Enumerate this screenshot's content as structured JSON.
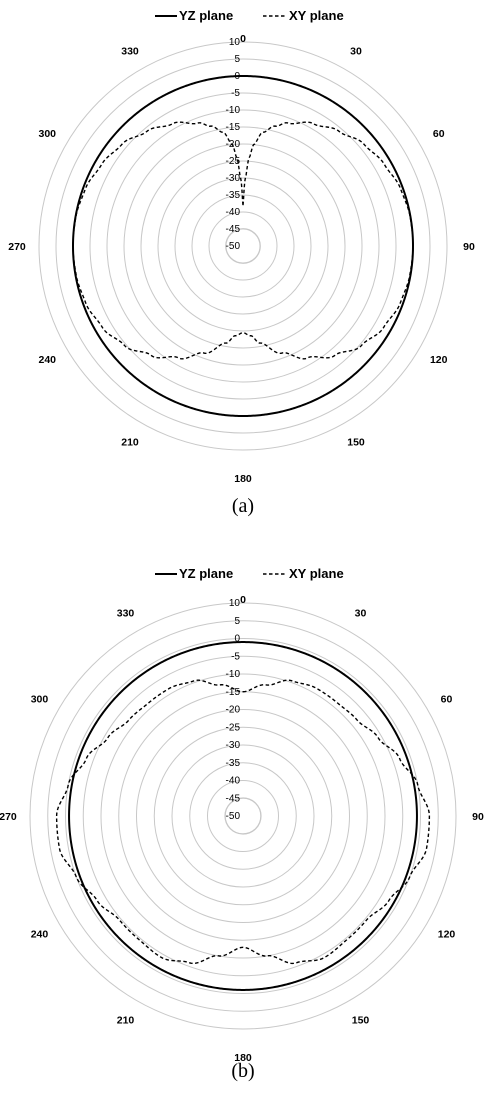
{
  "chart_data": [
    {
      "type": "polar-line",
      "panel": "a",
      "caption": "(a)",
      "r_ticks": [
        "10",
        "5",
        "0",
        "-5",
        "-10",
        "-15",
        "-20",
        "-25",
        "-30",
        "-35",
        "-40",
        "-45",
        "-50"
      ],
      "r_range": [
        -50,
        10
      ],
      "angle_ticks": [
        "0",
        "30",
        "60",
        "90",
        "120",
        "150",
        "180",
        "210",
        "240",
        "270",
        "300",
        "330"
      ],
      "legend_position": "top",
      "series": [
        {
          "name": "YZ plane",
          "line": "solid",
          "angles": [
            0,
            30,
            60,
            90,
            120,
            150,
            180,
            210,
            240,
            270,
            300,
            330,
            360
          ],
          "values": [
            0,
            0,
            0,
            0,
            0,
            0,
            0,
            0,
            0,
            0,
            0,
            0,
            0
          ]
        },
        {
          "name": "XY plane",
          "line": "dashed",
          "angles": [
            0,
            2,
            4,
            6,
            10,
            15,
            20,
            30,
            40,
            50,
            60,
            70,
            80,
            90,
            100,
            110,
            120,
            130,
            140,
            150,
            160,
            170,
            175,
            180,
            185,
            190,
            200,
            210,
            220,
            230,
            240,
            250,
            260,
            270,
            280,
            290,
            300,
            310,
            320,
            330,
            340,
            345,
            350,
            354,
            356,
            358,
            360
          ],
          "values": [
            -38,
            -30,
            -24,
            -20,
            -16,
            -13.5,
            -11.5,
            -8.5,
            -6,
            -3.5,
            -2,
            -0.7,
            -0.1,
            0,
            -0.2,
            -0.8,
            -2.2,
            -4.5,
            -8,
            -12,
            -16.5,
            -21,
            -23.5,
            -24.5,
            -23.5,
            -21,
            -16.5,
            -12,
            -8,
            -4.5,
            -2.2,
            -0.8,
            -0.2,
            0,
            -0.1,
            -0.7,
            -2,
            -3.5,
            -6,
            -8.5,
            -11.5,
            -13.5,
            -16,
            -20,
            -24,
            -30,
            -38
          ]
        }
      ]
    },
    {
      "type": "polar-line",
      "panel": "b",
      "caption": "(b)",
      "r_ticks": [
        "10",
        "5",
        "0",
        "-5",
        "-10",
        "-15",
        "-20",
        "-25",
        "-30",
        "-35",
        "-40",
        "-45",
        "-50"
      ],
      "r_range": [
        -50,
        10
      ],
      "angle_ticks": [
        "0",
        "30",
        "60",
        "90",
        "120",
        "150",
        "180",
        "210",
        "240",
        "270",
        "300",
        "330"
      ],
      "legend_position": "top",
      "series": [
        {
          "name": "YZ plane",
          "line": "solid",
          "angles": [
            0,
            30,
            60,
            90,
            120,
            150,
            180,
            210,
            240,
            270,
            300,
            330,
            360
          ],
          "values": [
            -1,
            -1,
            -1,
            -1,
            -1,
            -1,
            -1,
            -1,
            -1,
            -1,
            -1,
            -1,
            -1
          ]
        },
        {
          "name": "XY plane",
          "line": "dashed",
          "angles": [
            0,
            10,
            20,
            30,
            40,
            50,
            60,
            70,
            80,
            90,
            100,
            110,
            120,
            130,
            140,
            150,
            160,
            170,
            180,
            190,
            200,
            210,
            220,
            230,
            240,
            250,
            260,
            270,
            280,
            290,
            300,
            310,
            320,
            330,
            340,
            350,
            360
          ],
          "values": [
            -15,
            -12.5,
            -9.5,
            -8.5,
            -8.5,
            -8,
            -6,
            -3,
            0,
            2.5,
            2.5,
            0,
            -2.5,
            -4.5,
            -4.5,
            -4,
            -6,
            -10,
            -13,
            -10,
            -6,
            -4,
            -4.5,
            -4.5,
            -2.5,
            0,
            2.5,
            2.5,
            0,
            -3,
            -6,
            -8,
            -8.5,
            -8.5,
            -9.5,
            -12.5,
            -15
          ]
        }
      ]
    }
  ]
}
